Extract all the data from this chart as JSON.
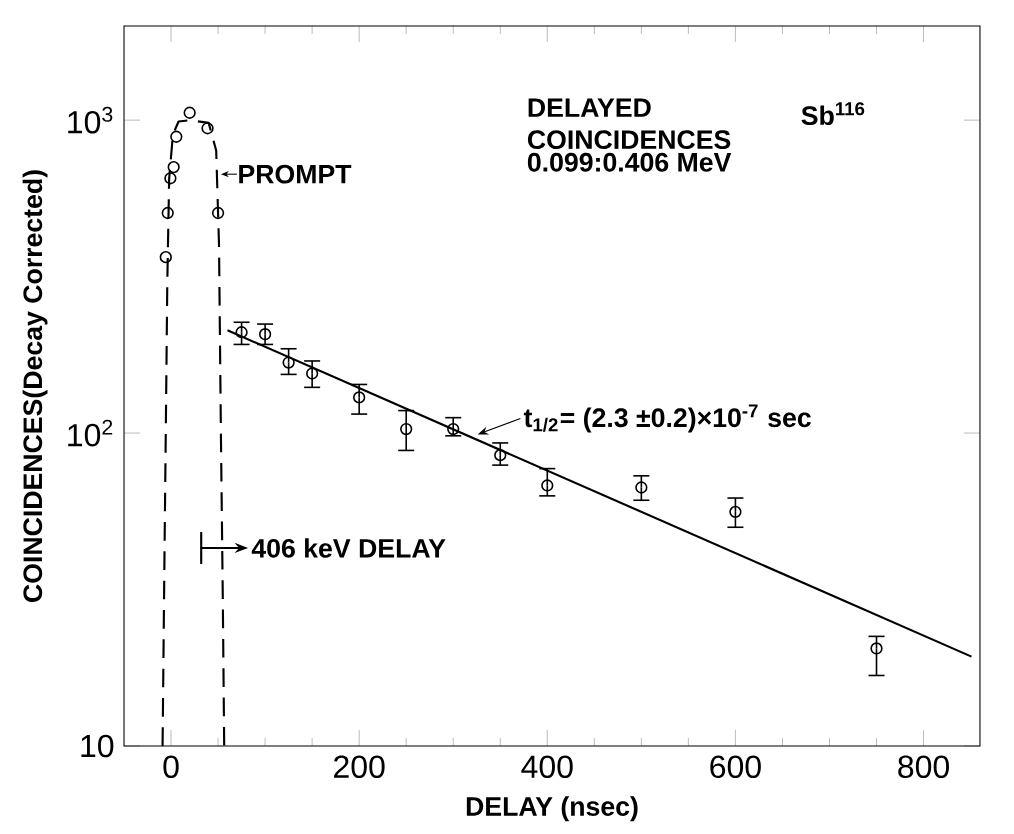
{
  "chart_data": {
    "type": "scatter",
    "title": "DELAYED COINCIDENCES",
    "subtitle": "0.099:0.406 MeV",
    "xlabel": "DELAY (nsec)",
    "ylabel": "COINCIDENCES(Decay Corrected)",
    "log": "y",
    "xlim": [
      -50,
      860
    ],
    "ylim": [
      10,
      2000
    ],
    "xticks": [
      0,
      200,
      400,
      600,
      800
    ],
    "yticks": [
      10,
      {
        "value": 100,
        "label": "10$^{2}$"
      },
      {
        "value": 1000,
        "label": "10$^{3}$"
      }
    ],
    "series": [
      {
        "type": "line",
        "line_style": "dashed",
        "marker": "none",
        "color": "#000000",
        "x": [
          -9,
          -7,
          -5.6,
          -4,
          -2,
          2,
          8,
          20,
          40,
          48,
          51,
          53,
          55,
          56.5
        ],
        "values": [
          10,
          40,
          100,
          300,
          650,
          900,
          990,
          1000,
          980,
          800,
          400,
          100,
          30,
          10
        ]
      },
      {
        "marker": "circle",
        "color": "#000000",
        "x": [
          -5.6,
          -3.5,
          -0.7,
          2.8,
          5.6,
          19.8,
          38.8,
          50
        ],
        "values": [
          365,
          505,
          652,
          708,
          885,
          1056,
          942,
          505
        ]
      },
      {
        "marker": "circle",
        "color": "#000000",
        "x": [
          75,
          100,
          125,
          150,
          200,
          250,
          300,
          350,
          400,
          500,
          600,
          750
        ],
        "values": [
          210,
          207,
          168,
          155,
          130,
          103,
          103,
          85,
          68,
          67,
          56,
          20.5
        ],
        "errors": [
          [
            192,
            226
          ],
          [
            192,
            223
          ],
          [
            154,
            186
          ],
          [
            140,
            170
          ],
          [
            115,
            143
          ],
          [
            88,
            118
          ],
          [
            98,
            112
          ],
          [
            79,
            93
          ],
          [
            63,
            77
          ],
          [
            61,
            73
          ],
          [
            50,
            62
          ],
          [
            16.8,
            22.4
          ]
        ]
      },
      {
        "type": "line",
        "line_style": "solid",
        "marker": "none",
        "color": "#000000",
        "x": [
          60,
          851
        ],
        "values": [
          213,
          19.3
        ]
      }
    ],
    "annotations": [
      "Sb$^{116}$",
      {
        "text": "PROMPT",
        "x": 53,
        "y": 672
      },
      {
        "text": "t$_{1/2}$= (2.3 ±0.2)×10$^{-7}$ sec",
        "x": 326,
        "y": 99
      },
      "406 keV DELAY"
    ]
  }
}
